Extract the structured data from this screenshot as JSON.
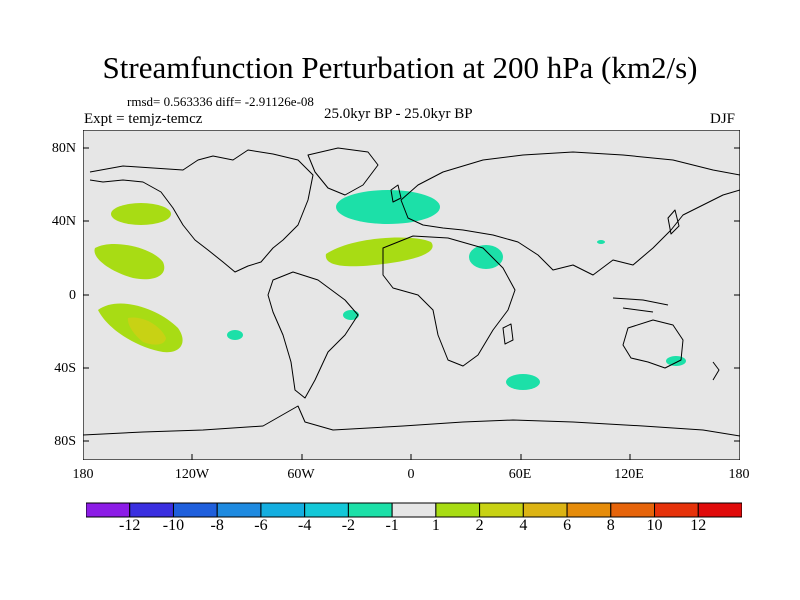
{
  "title": "Streamfunction Perturbation at 200 hPa (km2/s)",
  "stats": "rmsd= 0.563336 diff= -2.91126e-08",
  "experiment": "Expt = temjz-temcz",
  "period": "25.0kyr BP - 25.0kyr BP",
  "season": "DJF",
  "lat_labels": [
    "80N",
    "40N",
    "0",
    "40S",
    "80S"
  ],
  "lon_labels": [
    "180",
    "120W",
    "60W",
    "0",
    "60E",
    "120E",
    "180"
  ],
  "colorbar": {
    "labels": [
      "-12",
      "-10",
      "-8",
      "-6",
      "-4",
      "-2",
      "-1",
      "1",
      "2",
      "4",
      "6",
      "8",
      "10",
      "12"
    ],
    "colors": [
      "#8c1ce6",
      "#3a2fe0",
      "#1f5fdc",
      "#1e8ae0",
      "#14aee0",
      "#14c8d8",
      "#1ce0a8",
      "#e6e6e6",
      "#a8dc14",
      "#c8d214",
      "#dcb414",
      "#e68c0a",
      "#e6640a",
      "#e6320a",
      "#e00a0a"
    ]
  },
  "colors": {
    "land_ocean_bg": "#e6e6e6",
    "coast": "#000000"
  }
}
